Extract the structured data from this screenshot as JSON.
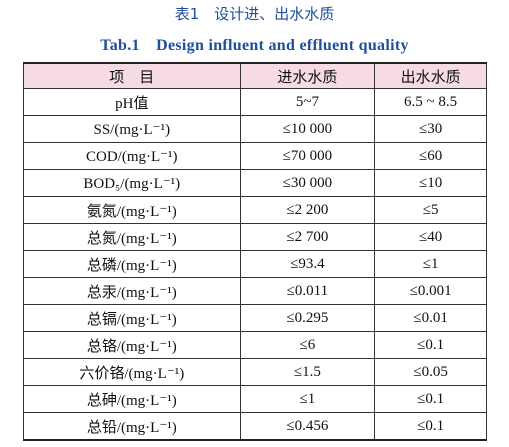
{
  "header": {
    "title": "表1　设计进、出水水质",
    "subtitle": "Tab.1　Design influent and effluent quality"
  },
  "table": {
    "columns": [
      "项　目",
      "进水水质",
      "出水水质"
    ],
    "rows": [
      [
        "pH值",
        "5~7",
        "6.5 ~ 8.5"
      ],
      [
        "SS/(mg·L⁻¹)",
        "≤10 000",
        "≤30"
      ],
      [
        "COD/(mg·L⁻¹)",
        "≤70 000",
        "≤60"
      ],
      [
        "BOD₅/(mg·L⁻¹)",
        "≤30 000",
        "≤10"
      ],
      [
        "氨氮/(mg·L⁻¹)",
        "≤2 200",
        "≤5"
      ],
      [
        "总氮/(mg·L⁻¹)",
        "≤2 700",
        "≤40"
      ],
      [
        "总磷/(mg·L⁻¹)",
        "≤93.4",
        "≤1"
      ],
      [
        "总汞/(mg·L⁻¹)",
        "≤0.011",
        "≤0.001"
      ],
      [
        "总镉/(mg·L⁻¹)",
        "≤0.295",
        "≤0.01"
      ],
      [
        "总铬/(mg·L⁻¹)",
        "≤6",
        "≤0.1"
      ],
      [
        "六价铬/(mg·L⁻¹)",
        "≤1.5",
        "≤0.05"
      ],
      [
        "总砷/(mg·L⁻¹)",
        "≤1",
        "≤0.1"
      ],
      [
        "总铅/(mg·L⁻¹)",
        "≤0.456",
        "≤0.1"
      ]
    ]
  }
}
